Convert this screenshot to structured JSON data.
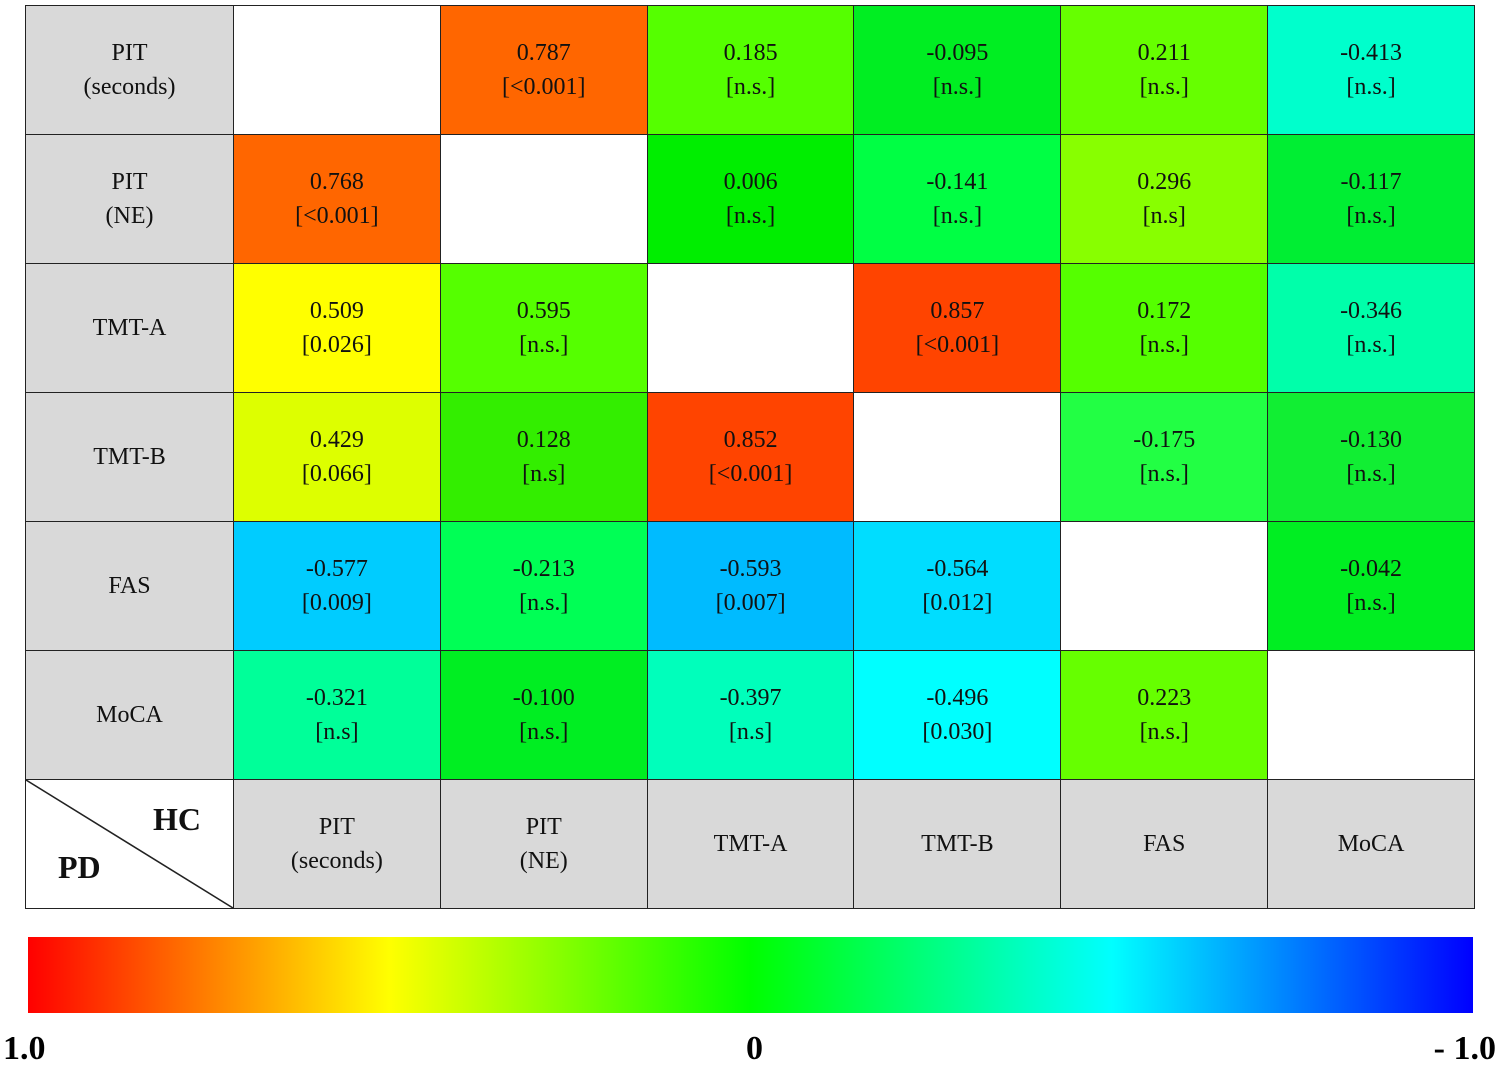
{
  "chart_data": {
    "type": "heatmap",
    "row_header_label": "PD",
    "col_header_label": "HC",
    "rows": [
      [
        "PIT",
        "(seconds)"
      ],
      [
        "PIT",
        "(NE)"
      ],
      [
        "TMT-A"
      ],
      [
        "TMT-B"
      ],
      [
        "FAS"
      ],
      [
        "MoCA"
      ]
    ],
    "columns": [
      [
        "PIT",
        "(seconds)"
      ],
      [
        "PIT",
        "(NE)"
      ],
      [
        "TMT-A"
      ],
      [
        "TMT-B"
      ],
      [
        "FAS"
      ],
      [
        "MoCA"
      ]
    ],
    "values": [
      [
        null,
        0.787,
        0.185,
        -0.095,
        0.211,
        -0.413
      ],
      [
        0.768,
        null,
        0.006,
        -0.141,
        0.296,
        -0.117
      ],
      [
        0.509,
        0.595,
        null,
        0.857,
        0.172,
        -0.346
      ],
      [
        0.429,
        0.128,
        0.852,
        null,
        -0.175,
        -0.13
      ],
      [
        -0.577,
        -0.213,
        -0.593,
        -0.564,
        null,
        -0.042
      ],
      [
        -0.321,
        -0.1,
        -0.397,
        -0.496,
        0.223,
        null
      ]
    ],
    "value_labels": [
      [
        null,
        "0.787",
        "0.185",
        "-0.095",
        "0.211",
        "-0.413"
      ],
      [
        "0.768",
        null,
        "0.006",
        "-0.141",
        "0.296",
        "-0.117"
      ],
      [
        "0.509",
        "0.595",
        null,
        "0.857",
        "0.172",
        "-0.346"
      ],
      [
        "0.429",
        "0.128",
        "0.852",
        null,
        "-0.175",
        "-0.130"
      ],
      [
        "-0.577",
        "-0.213",
        "-0.593",
        "-0.564",
        null,
        "-0.042"
      ],
      [
        "-0.321",
        "-0.100",
        "-0.397",
        "-0.496",
        "0.223",
        null
      ]
    ],
    "p_labels": [
      [
        null,
        "[<0.001]",
        "[n.s.]",
        "[n.s.]",
        "[n.s.]",
        "[n.s.]"
      ],
      [
        "[<0.001]",
        null,
        "[n.s.]",
        "[n.s.]",
        "[n.s]",
        "[n.s.]"
      ],
      [
        "[0.026]",
        "[n.s.]",
        null,
        "[<0.001]",
        "[n.s.]",
        "[n.s.]"
      ],
      [
        "[0.066]",
        "[n.s]",
        "[<0.001]",
        null,
        "[n.s.]",
        "[n.s.]"
      ],
      [
        "[0.009]",
        "[n.s.]",
        "[0.007]",
        "[0.012]",
        null,
        "[n.s.]"
      ],
      [
        "[n.s]",
        "[n.s.]",
        "[n.s]",
        "[0.030]",
        "[n.s.]",
        null
      ]
    ],
    "cell_colors": [
      [
        null,
        "#ff6600",
        "#55ff00",
        "#00ee22",
        "#66ff00",
        "#00ffcc"
      ],
      [
        "#ff6600",
        null,
        "#00ee00",
        "#00ff44",
        "#88ff00",
        "#00ee33"
      ],
      [
        "#ffff00",
        "#55ff00",
        null,
        "#ff4400",
        "#55ff00",
        "#00ffaa"
      ],
      [
        "#ddff00",
        "#33ee00",
        "#ff4400",
        null,
        "#22ff44",
        "#11ee33"
      ],
      [
        "#00ccff",
        "#00ff55",
        "#00bbff",
        "#00ddff",
        null,
        "#00ee22"
      ],
      [
        "#00ff99",
        "#00ee22",
        "#00ffbb",
        "#00ffff",
        "#66ff00",
        null
      ]
    ],
    "colorbar": {
      "range": [
        1.0,
        -1.0
      ],
      "tick_labels": [
        "1.0",
        "0",
        "- 1.0"
      ],
      "colors": [
        "#ff0000",
        "#ffff00",
        "#00ff00",
        "#00ffff",
        "#0000ff"
      ]
    },
    "header_color": "#d9d9d9",
    "diagonal_color": "#ffffff"
  }
}
